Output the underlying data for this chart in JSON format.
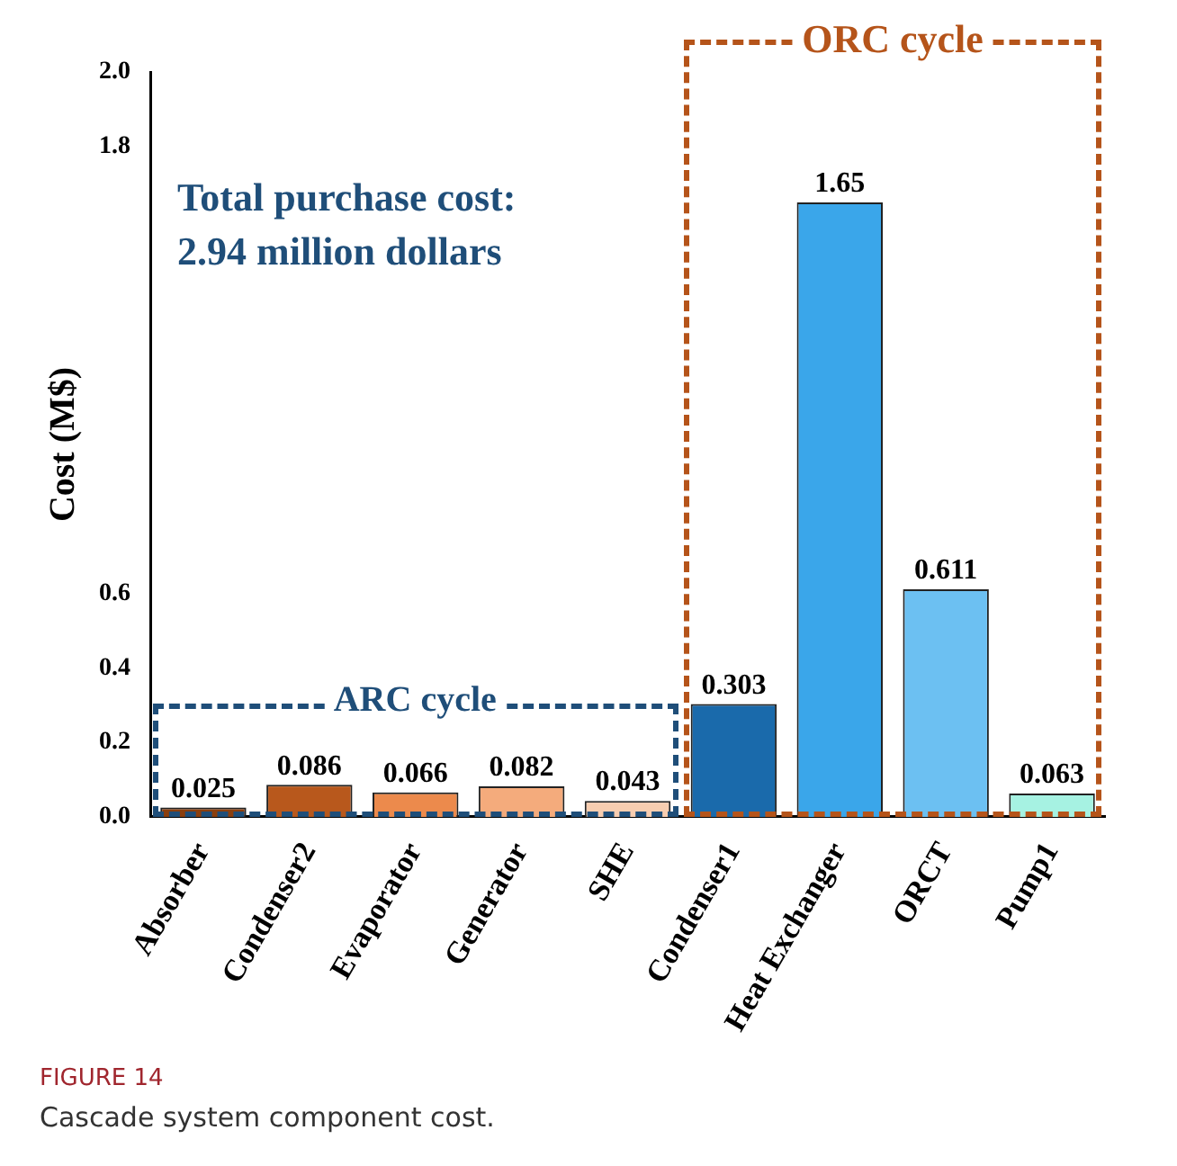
{
  "chart_data": {
    "type": "bar",
    "ylabel": "Cost (M$)",
    "categories": [
      "Absorber",
      "Condenser2",
      "Evaporator",
      "Generator",
      "SHE",
      "Condenser1",
      "Heat Exchanger",
      "ORCT",
      "Pump1"
    ],
    "values": [
      0.025,
      0.086,
      0.066,
      0.082,
      0.043,
      0.303,
      1.65,
      0.611,
      0.063
    ],
    "colors": [
      "#8b3f0e",
      "#b8581c",
      "#ec8a4c",
      "#f4ab7c",
      "#f7cdb0",
      "#1a6aab",
      "#3aa6ea",
      "#6cc0f2",
      "#a6f2e2"
    ],
    "ylim": [
      0,
      2.0
    ],
    "yticks": [
      {
        "value": 0,
        "label": "0.0"
      },
      0.2,
      0.4,
      0.6,
      1.8,
      {
        "value": 2.0,
        "label": "2.0"
      }
    ],
    "data_labels": true,
    "grid": false,
    "legend": false,
    "annotations": [
      "ARC cycle",
      "ORC cycle",
      "Total purchase cost: 2.94 million dollars",
      "FIGURE 14",
      "Cascade system component cost."
    ]
  }
}
